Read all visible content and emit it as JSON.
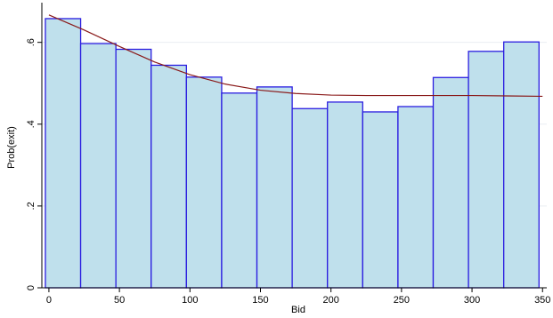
{
  "chart_data": {
    "type": "bar",
    "xlabel": "Bid",
    "ylabel": "Prob(exit)",
    "xlim": [
      -5,
      353
    ],
    "ylim": [
      0,
      0.697
    ],
    "x_ticks": [
      0,
      50,
      100,
      150,
      200,
      250,
      300,
      350
    ],
    "y_ticks": [
      0,
      0.2,
      0.4,
      0.6
    ],
    "y_tick_labels": [
      "0",
      ".2",
      ".4",
      ".6"
    ],
    "grid": "horizontal",
    "legend": "none",
    "bin_width": 25,
    "bars": [
      {
        "x_start": -2.5,
        "x_end": 22.5,
        "value": 0.658
      },
      {
        "x_start": 22.5,
        "x_end": 47.5,
        "value": 0.597
      },
      {
        "x_start": 47.5,
        "x_end": 72.5,
        "value": 0.583
      },
      {
        "x_start": 72.5,
        "x_end": 97.5,
        "value": 0.544
      },
      {
        "x_start": 97.5,
        "x_end": 122.5,
        "value": 0.515
      },
      {
        "x_start": 122.5,
        "x_end": 147.5,
        "value": 0.476
      },
      {
        "x_start": 147.5,
        "x_end": 172.5,
        "value": 0.491
      },
      {
        "x_start": 172.5,
        "x_end": 197.5,
        "value": 0.438
      },
      {
        "x_start": 197.5,
        "x_end": 222.5,
        "value": 0.454
      },
      {
        "x_start": 222.5,
        "x_end": 247.5,
        "value": 0.43
      },
      {
        "x_start": 247.5,
        "x_end": 272.5,
        "value": 0.443
      },
      {
        "x_start": 272.5,
        "x_end": 297.5,
        "value": 0.514
      },
      {
        "x_start": 297.5,
        "x_end": 322.5,
        "value": 0.578
      },
      {
        "x_start": 322.5,
        "x_end": 347.5,
        "value": 0.601
      }
    ],
    "fitted_curve": {
      "x": [
        0,
        25,
        50,
        75,
        100,
        125,
        150,
        175,
        200,
        225,
        250,
        275,
        300,
        325,
        350
      ],
      "y": [
        0.667,
        0.63,
        0.59,
        0.552,
        0.521,
        0.498,
        0.483,
        0.475,
        0.471,
        0.47,
        0.47,
        0.47,
        0.47,
        0.469,
        0.468
      ]
    },
    "colors": {
      "bar_fill": "#bfe0ec",
      "bar_edge": "#2a1de0",
      "curve": "#8a1a1a",
      "grid": "#e9eef2",
      "axis": "#000000"
    }
  }
}
